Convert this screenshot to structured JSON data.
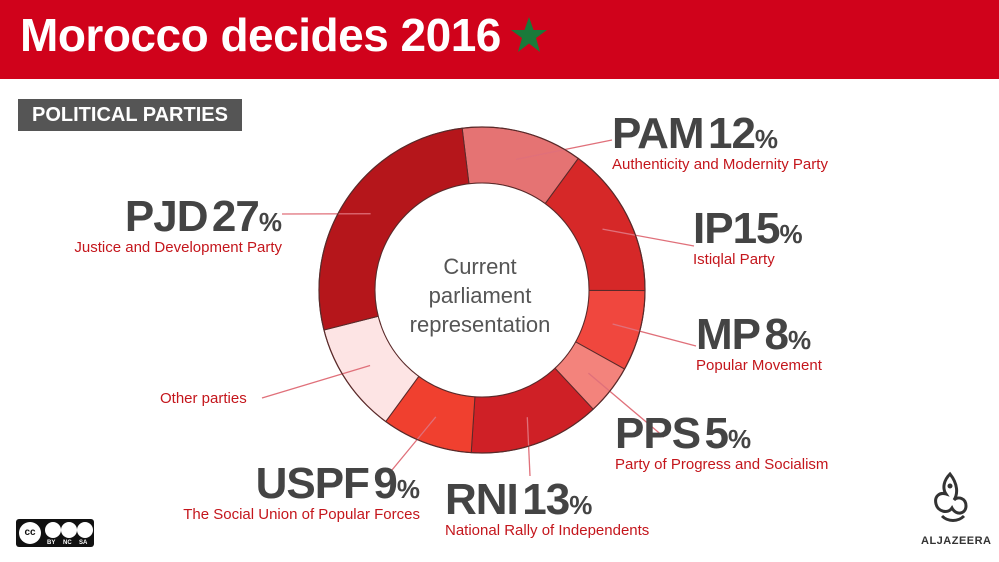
{
  "header": {
    "title": "Morocco decides 2016",
    "star_color": "#1a7a3a",
    "bg_color": "#d0021b"
  },
  "section_tag": "POLITICAL PARTIES",
  "center_text": [
    "Current",
    "parliament",
    "representation"
  ],
  "chart_data": {
    "type": "pie",
    "title": "Current parliament representation",
    "donut": true,
    "slices": [
      {
        "abbr": "PAM",
        "value": 12,
        "label": "Authenticity and Modernity Party",
        "color": "#e57373"
      },
      {
        "abbr": "IP",
        "value": 15,
        "label": "Istiqlal Party",
        "color": "#d62828"
      },
      {
        "abbr": "MP",
        "value": 8,
        "label": "Popular Movement",
        "color": "#f0473e"
      },
      {
        "abbr": "PPS",
        "value": 5,
        "label": "Party of Progress and Socialism",
        "color": "#f3837c"
      },
      {
        "abbr": "RNI",
        "value": 13,
        "label": "National Rally of Independents",
        "color": "#cf2026"
      },
      {
        "abbr": "USPF",
        "value": 9,
        "label": "The Social Union of Popular Forces",
        "color": "#f0402f"
      },
      {
        "abbr": "",
        "value": 11,
        "label": "Other parties",
        "color": "#fde4e4"
      },
      {
        "abbr": "PJD",
        "value": 27,
        "label": "Justice and Development Party",
        "color": "#b5161b"
      }
    ],
    "percent_symbol": "%"
  },
  "footer": {
    "license": [
      "BY",
      "NC",
      "SA"
    ],
    "license_badge": "cc",
    "brand": "ALJAZEERA"
  }
}
